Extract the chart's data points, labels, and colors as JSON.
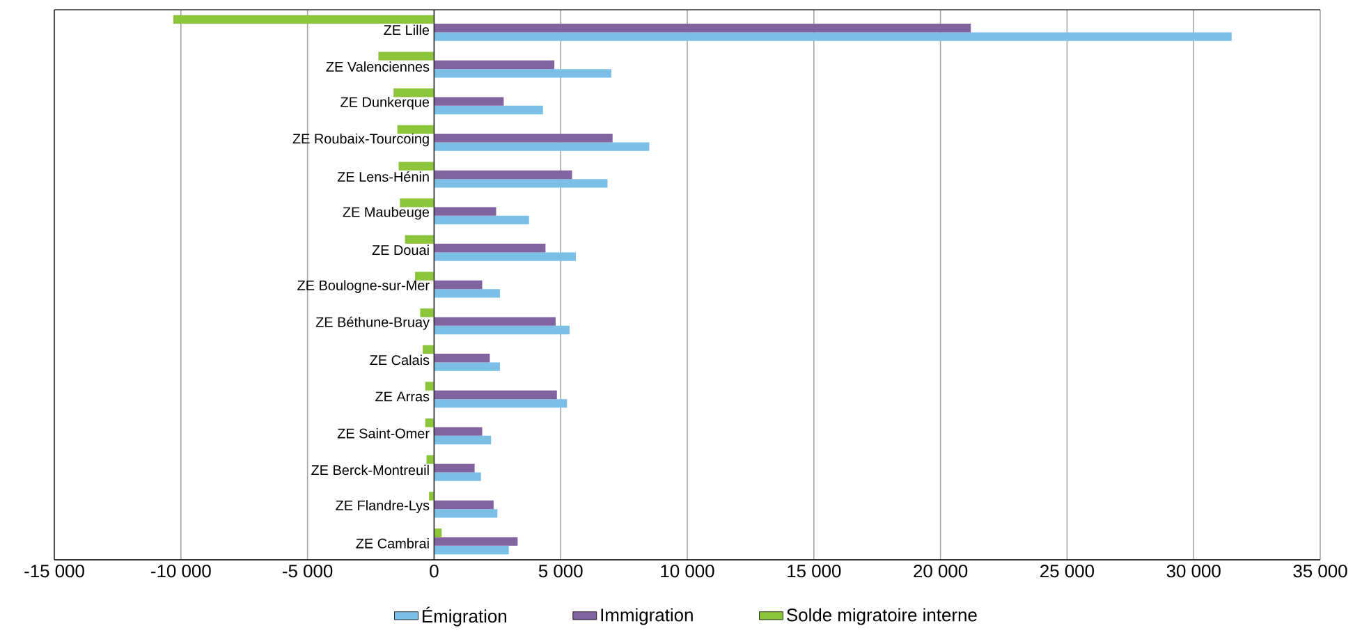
{
  "chart_data": {
    "type": "bar",
    "orientation": "horizontal",
    "categories": [
      "ZE Lille",
      "ZE Valenciennes",
      "ZE Dunkerque",
      "ZE Roubaix-Tourcoing",
      "ZE Lens-Hénin",
      "ZE Maubeuge",
      "ZE Douai",
      "ZE Boulogne-sur-Mer",
      "ZE Béthune-Bruay",
      "ZE Calais",
      "ZE Arras",
      "ZE Saint-Omer",
      "ZE Berck-Montreuil",
      "ZE Flandre-Lys",
      "ZE Cambrai"
    ],
    "series": [
      {
        "name": "Émigration",
        "color": "#7bbfe6",
        "values": [
          31500,
          7000,
          4300,
          8500,
          6850,
          3750,
          5600,
          2600,
          5350,
          2600,
          5250,
          2250,
          1850,
          2500,
          2950
        ]
      },
      {
        "name": "Immigration",
        "color": "#80639f",
        "values": [
          21200,
          4750,
          2750,
          7050,
          5450,
          2450,
          4400,
          1900,
          4800,
          2200,
          4850,
          1900,
          1600,
          2350,
          3300
        ]
      },
      {
        "name": "Solde migratoire interne",
        "color": "#8cc43a",
        "values": [
          -10300,
          -2200,
          -1600,
          -1450,
          -1400,
          -1350,
          -1150,
          -750,
          -550,
          -450,
          -350,
          -350,
          -300,
          -200,
          300
        ]
      }
    ],
    "xlim": [
      -15000,
      35000
    ],
    "xticks": [
      {
        "value": -15000,
        "label": "-15 000"
      },
      {
        "value": -10000,
        "label": "-10 000"
      },
      {
        "value": -5000,
        "label": "-5 000"
      },
      0,
      {
        "value": 5000,
        "label": "5 000"
      },
      {
        "value": 10000,
        "label": "10 000"
      },
      {
        "value": 15000,
        "label": "15 000"
      },
      {
        "value": 20000,
        "label": "20 000"
      },
      {
        "value": 25000,
        "label": "25 000"
      },
      {
        "value": 30000,
        "label": "30 000"
      },
      {
        "value": 35000,
        "label": "35 000"
      }
    ],
    "grid": "x",
    "legend": "bottom"
  }
}
